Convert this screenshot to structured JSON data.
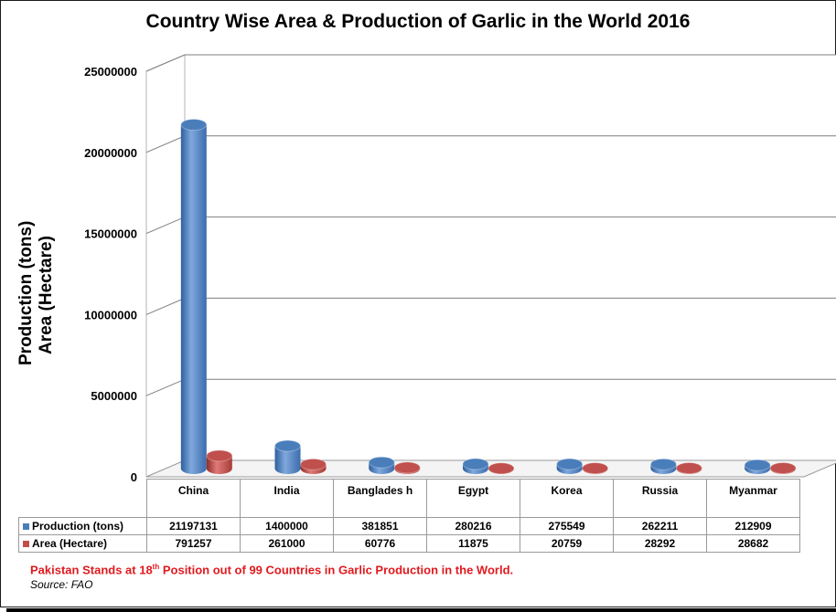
{
  "chart_data": {
    "type": "bar",
    "title": "Country Wise Area & Production of Garlic in the World 2016",
    "ylabel_line1": "Production (tons)",
    "ylabel_line2": "Area (Hectare)",
    "categories": [
      "China",
      "India",
      "Banglades h",
      "Egypt",
      "Korea",
      "Russia",
      "Myanmar"
    ],
    "series": [
      {
        "name": "Production (tons)",
        "color": "#4a7ebb",
        "values": [
          21197131,
          1400000,
          381851,
          280216,
          275549,
          262211,
          212909
        ]
      },
      {
        "name": "Area (Hectare)",
        "color": "#c0504d",
        "values": [
          791257,
          261000,
          60776,
          11875,
          20759,
          28292,
          28682
        ]
      }
    ],
    "yticks": [
      "25000000",
      "20000000",
      "15000000",
      "10000000",
      "5000000",
      "0"
    ],
    "ylim": [
      0,
      25000000
    ],
    "grid": true,
    "legend": "data-table"
  },
  "note": {
    "prefix": "Pakistan Stands at 18",
    "sup": "th",
    "suffix": " Position out of 99 Countries in Garlic Production in the World."
  },
  "source": "Source: FAO"
}
